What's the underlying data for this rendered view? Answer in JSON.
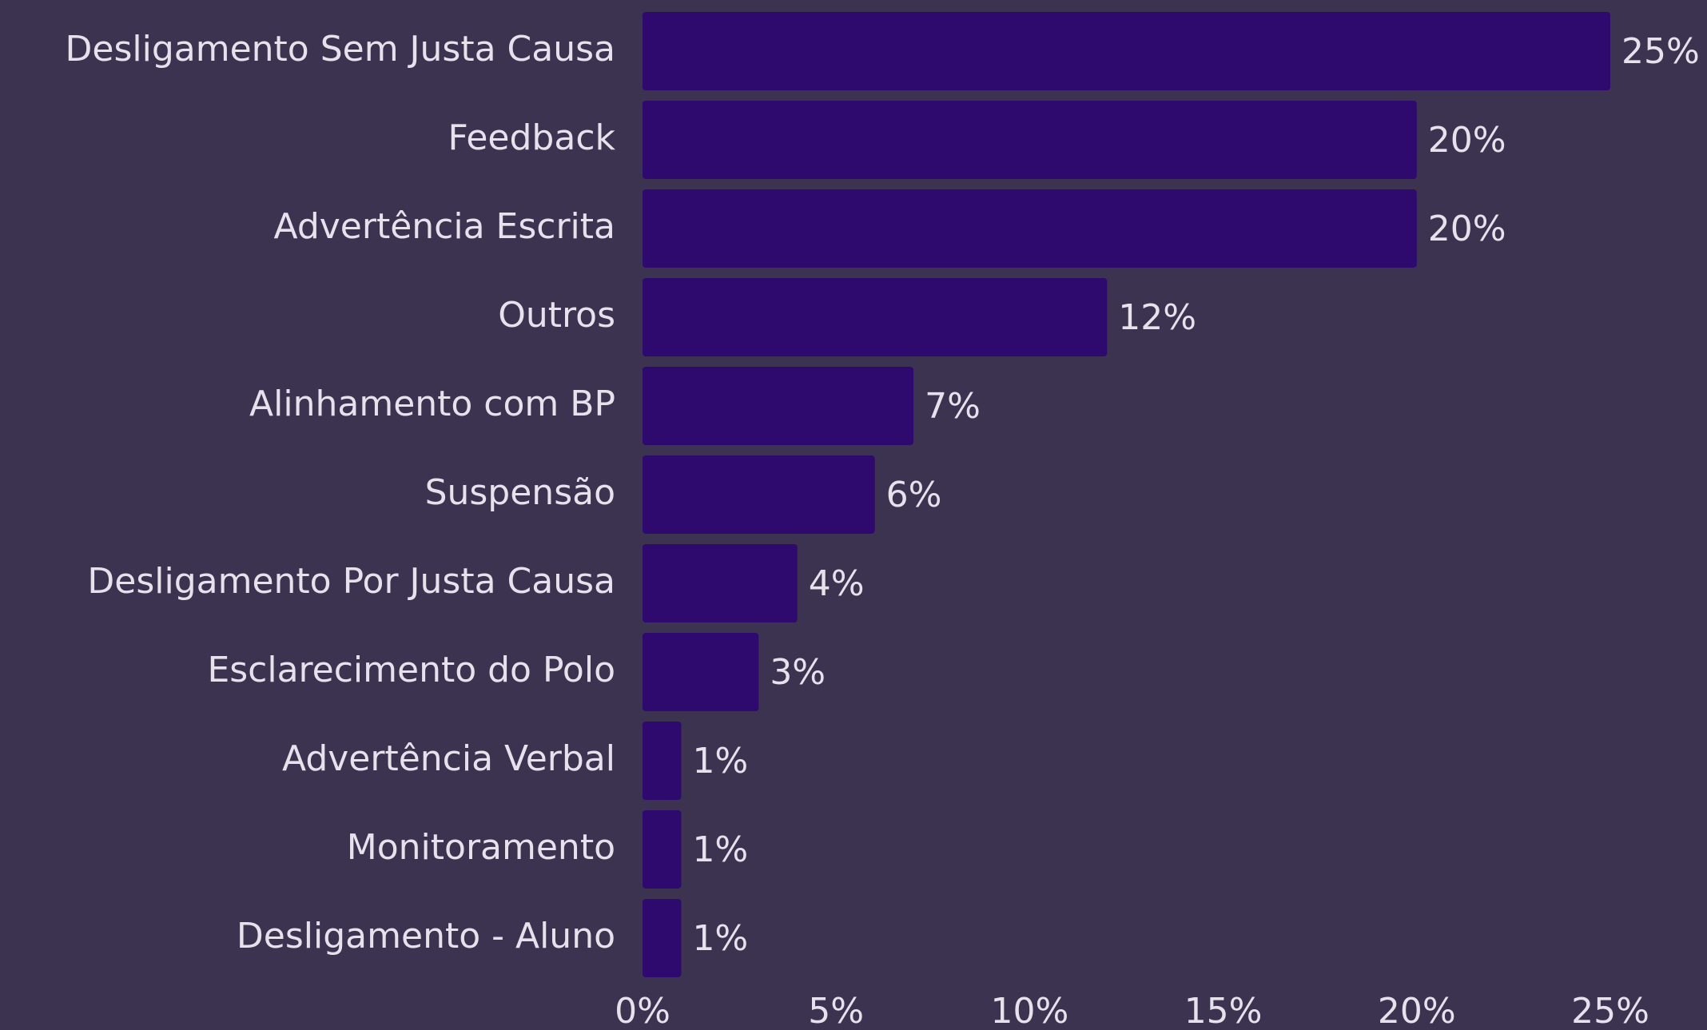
{
  "chart_data": {
    "type": "bar",
    "orientation": "horizontal",
    "categories": [
      "Desligamento Sem Justa Causa",
      "Feedback",
      "Advertência Escrita",
      "Outros",
      "Alinhamento com BP",
      "Suspensão",
      "Desligamento Por Justa Causa",
      "Esclarecimento do Polo",
      "Advertência Verbal",
      "Monitoramento",
      "Desligamento - Aluno"
    ],
    "values": [
      25,
      20,
      20,
      12,
      7,
      6,
      4,
      3,
      1,
      1,
      1
    ],
    "value_labels": [
      "25%",
      "20%",
      "20%",
      "12%",
      "7%",
      "6%",
      "4%",
      "3%",
      "1%",
      "1%",
      "1%"
    ],
    "color": "#2e0a6e",
    "xlim": [
      0,
      25
    ],
    "xticks": [
      {
        "value": 0,
        "label": "0%"
      },
      {
        "value": 5,
        "label": "5%"
      },
      {
        "value": 10,
        "label": "10%"
      },
      {
        "value": 15,
        "label": "15%"
      },
      {
        "value": 20,
        "label": "20%"
      },
      {
        "value": 25,
        "label": "25%"
      }
    ],
    "grid": false
  }
}
